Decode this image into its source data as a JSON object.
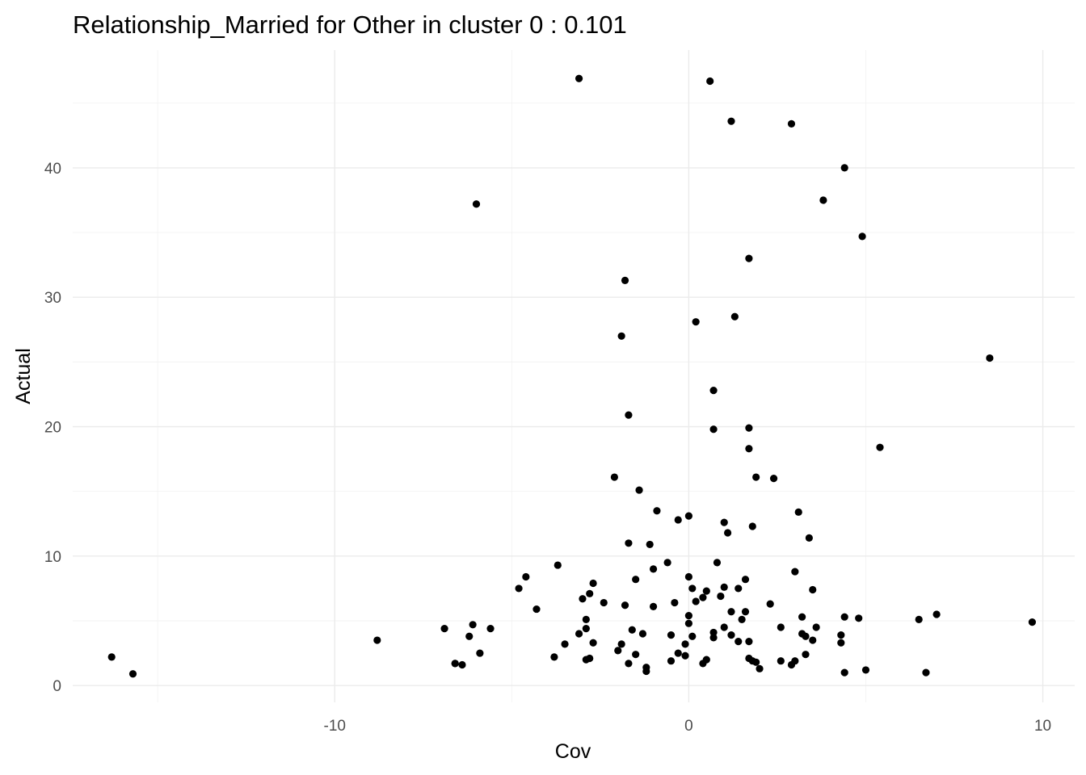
{
  "chart_data": {
    "type": "scatter",
    "title": "Relationship_Married for Other in cluster 0 : 0.101",
    "xlabel": "Cov",
    "ylabel": "Actual",
    "xlim": [
      -17.4,
      10.9
    ],
    "ylim": [
      -1.3,
      49.1
    ],
    "x_ticks": [
      -10,
      0,
      10
    ],
    "x_tick_labels": [
      "-10",
      "0",
      "10"
    ],
    "x_minor_ticks": [
      -15,
      -5,
      5
    ],
    "y_ticks": [
      0,
      10,
      20,
      30,
      40
    ],
    "y_tick_labels": [
      "0",
      "10",
      "20",
      "30",
      "40"
    ],
    "y_minor_ticks": [
      5,
      15,
      25,
      35,
      45
    ],
    "grid": true,
    "legend": "none",
    "point_color": "#000000",
    "points": [
      {
        "x": -16.3,
        "y": 2.2
      },
      {
        "x": -15.7,
        "y": 0.9
      },
      {
        "x": -8.8,
        "y": 3.5
      },
      {
        "x": -6.9,
        "y": 4.4
      },
      {
        "x": -6.6,
        "y": 1.7
      },
      {
        "x": -6.6,
        "y": 1.7
      },
      {
        "x": -6.4,
        "y": 1.6
      },
      {
        "x": -6.2,
        "y": 3.8
      },
      {
        "x": -6.1,
        "y": 4.7
      },
      {
        "x": -6.0,
        "y": 37.2
      },
      {
        "x": -5.9,
        "y": 2.5
      },
      {
        "x": -5.6,
        "y": 4.4
      },
      {
        "x": -4.8,
        "y": 7.5
      },
      {
        "x": -4.6,
        "y": 8.4
      },
      {
        "x": -4.3,
        "y": 5.9
      },
      {
        "x": -3.8,
        "y": 2.2
      },
      {
        "x": -3.7,
        "y": 9.3
      },
      {
        "x": -3.5,
        "y": 3.2
      },
      {
        "x": -3.1,
        "y": 46.9
      },
      {
        "x": -3.1,
        "y": 4.0
      },
      {
        "x": -3.0,
        "y": 6.7
      },
      {
        "x": -2.9,
        "y": 2.0
      },
      {
        "x": -2.9,
        "y": 4.4
      },
      {
        "x": -2.9,
        "y": 5.1
      },
      {
        "x": -2.8,
        "y": 7.1
      },
      {
        "x": -2.8,
        "y": 2.1
      },
      {
        "x": -2.7,
        "y": 7.9
      },
      {
        "x": -2.7,
        "y": 3.3
      },
      {
        "x": -2.4,
        "y": 6.4
      },
      {
        "x": -2.1,
        "y": 16.1
      },
      {
        "x": -2.0,
        "y": 2.7
      },
      {
        "x": -1.9,
        "y": 3.2
      },
      {
        "x": -1.9,
        "y": 27.0
      },
      {
        "x": -1.8,
        "y": 31.3
      },
      {
        "x": -1.8,
        "y": 6.2
      },
      {
        "x": -1.7,
        "y": 1.7
      },
      {
        "x": -1.7,
        "y": 11.0
      },
      {
        "x": -1.7,
        "y": 20.9
      },
      {
        "x": -1.6,
        "y": 4.3
      },
      {
        "x": -1.5,
        "y": 2.4
      },
      {
        "x": -1.5,
        "y": 8.2
      },
      {
        "x": -1.4,
        "y": 15.1
      },
      {
        "x": -1.3,
        "y": 4.0
      },
      {
        "x": -1.2,
        "y": 1.1
      },
      {
        "x": -1.2,
        "y": 1.4
      },
      {
        "x": -1.1,
        "y": 10.9
      },
      {
        "x": -1.0,
        "y": 9.0
      },
      {
        "x": -1.0,
        "y": 6.1
      },
      {
        "x": -0.9,
        "y": 13.5
      },
      {
        "x": -0.6,
        "y": 9.5
      },
      {
        "x": -0.5,
        "y": 3.9
      },
      {
        "x": -0.5,
        "y": 1.9
      },
      {
        "x": -0.4,
        "y": 6.4
      },
      {
        "x": -0.3,
        "y": 2.5
      },
      {
        "x": -0.3,
        "y": 12.8
      },
      {
        "x": -0.1,
        "y": 2.3
      },
      {
        "x": -0.1,
        "y": 3.2
      },
      {
        "x": -0.0,
        "y": 13.1
      },
      {
        "x": -0.0,
        "y": 8.4
      },
      {
        "x": 0.0,
        "y": 5.4
      },
      {
        "x": 0.0,
        "y": 4.8
      },
      {
        "x": 0.1,
        "y": 7.5
      },
      {
        "x": 0.1,
        "y": 3.8
      },
      {
        "x": 0.2,
        "y": 6.5
      },
      {
        "x": 0.2,
        "y": 28.1
      },
      {
        "x": 0.4,
        "y": 1.7
      },
      {
        "x": 0.4,
        "y": 6.8
      },
      {
        "x": 0.5,
        "y": 2.0
      },
      {
        "x": 0.5,
        "y": 7.3
      },
      {
        "x": 0.6,
        "y": 46.7
      },
      {
        "x": 0.7,
        "y": 3.7
      },
      {
        "x": 0.7,
        "y": 4.1
      },
      {
        "x": 0.7,
        "y": 22.8
      },
      {
        "x": 0.7,
        "y": 19.8
      },
      {
        "x": 0.8,
        "y": 9.5
      },
      {
        "x": 0.9,
        "y": 6.9
      },
      {
        "x": 1.0,
        "y": 4.5
      },
      {
        "x": 1.0,
        "y": 12.6
      },
      {
        "x": 1.0,
        "y": 7.6
      },
      {
        "x": 1.1,
        "y": 11.8
      },
      {
        "x": 1.2,
        "y": 5.7
      },
      {
        "x": 1.2,
        "y": 43.6
      },
      {
        "x": 1.2,
        "y": 3.9
      },
      {
        "x": 1.3,
        "y": 28.5
      },
      {
        "x": 1.4,
        "y": 3.4
      },
      {
        "x": 1.4,
        "y": 7.5
      },
      {
        "x": 1.5,
        "y": 5.1
      },
      {
        "x": 1.6,
        "y": 8.2
      },
      {
        "x": 1.6,
        "y": 5.7
      },
      {
        "x": 1.7,
        "y": 19.9
      },
      {
        "x": 1.7,
        "y": 18.3
      },
      {
        "x": 1.7,
        "y": 2.1
      },
      {
        "x": 1.7,
        "y": 3.4
      },
      {
        "x": 1.7,
        "y": 33.0
      },
      {
        "x": 1.8,
        "y": 12.3
      },
      {
        "x": 1.8,
        "y": 1.9
      },
      {
        "x": 1.9,
        "y": 16.1
      },
      {
        "x": 1.9,
        "y": 1.8
      },
      {
        "x": 2.0,
        "y": 1.3
      },
      {
        "x": 2.3,
        "y": 6.3
      },
      {
        "x": 2.4,
        "y": 16.0
      },
      {
        "x": 2.6,
        "y": 4.5
      },
      {
        "x": 2.6,
        "y": 1.9
      },
      {
        "x": 2.9,
        "y": 1.6
      },
      {
        "x": 2.9,
        "y": 43.4
      },
      {
        "x": 3.0,
        "y": 8.8
      },
      {
        "x": 3.0,
        "y": 1.9
      },
      {
        "x": 3.1,
        "y": 13.4
      },
      {
        "x": 3.2,
        "y": 4.0
      },
      {
        "x": 3.2,
        "y": 5.3
      },
      {
        "x": 3.3,
        "y": 2.4
      },
      {
        "x": 3.3,
        "y": 3.8
      },
      {
        "x": 3.4,
        "y": 11.4
      },
      {
        "x": 3.5,
        "y": 3.5
      },
      {
        "x": 3.5,
        "y": 7.4
      },
      {
        "x": 3.6,
        "y": 4.5
      },
      {
        "x": 3.8,
        "y": 37.5
      },
      {
        "x": 4.3,
        "y": 3.3
      },
      {
        "x": 4.3,
        "y": 3.9
      },
      {
        "x": 4.4,
        "y": 5.3
      },
      {
        "x": 4.4,
        "y": 40.0
      },
      {
        "x": 4.4,
        "y": 1.0
      },
      {
        "x": 4.8,
        "y": 5.2
      },
      {
        "x": 4.9,
        "y": 34.7
      },
      {
        "x": 5.0,
        "y": 1.2
      },
      {
        "x": 5.4,
        "y": 18.4
      },
      {
        "x": 6.5,
        "y": 5.1
      },
      {
        "x": 6.7,
        "y": 1.0
      },
      {
        "x": 7.0,
        "y": 5.5
      },
      {
        "x": 8.5,
        "y": 25.3
      },
      {
        "x": 9.7,
        "y": 4.9
      }
    ]
  }
}
